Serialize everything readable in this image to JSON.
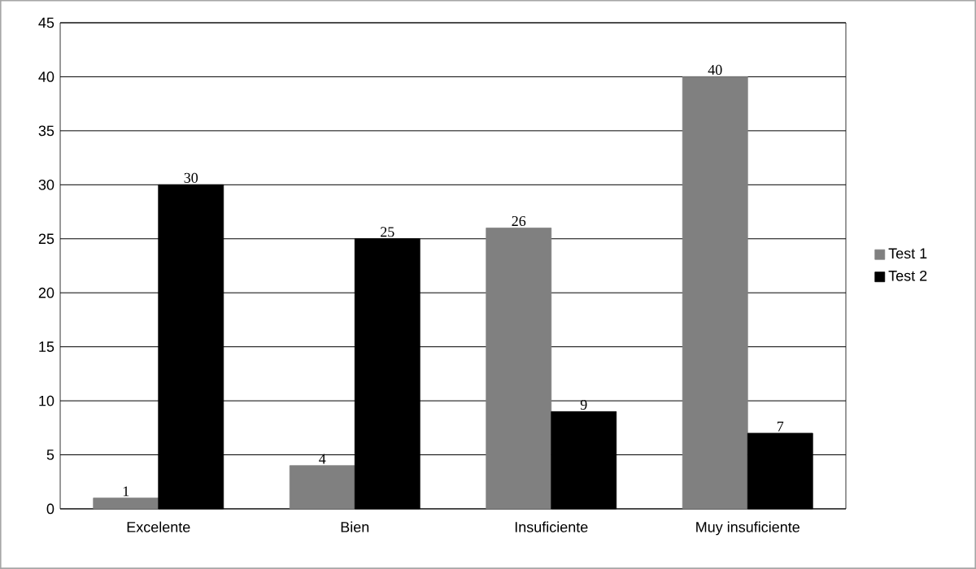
{
  "chart_data": {
    "type": "bar",
    "categories": [
      "Excelente",
      "Bien",
      "Insuficiente",
      "Muy insuficiente"
    ],
    "series": [
      {
        "name": "Test 1",
        "color": "#808080",
        "values": [
          1,
          4,
          26,
          40
        ]
      },
      {
        "name": "Test 2",
        "color": "#000000",
        "values": [
          30,
          25,
          9,
          7
        ]
      }
    ],
    "ylim": [
      0,
      45
    ],
    "yticks": [
      0,
      5,
      10,
      15,
      20,
      25,
      30,
      35,
      40,
      45
    ],
    "grid": "y",
    "legend": "right",
    "data_labels": true
  }
}
